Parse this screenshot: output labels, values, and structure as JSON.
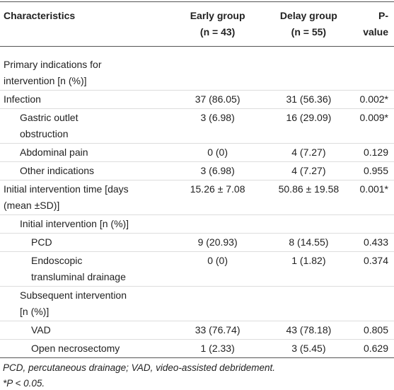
{
  "table": {
    "header": [
      "Characteristics",
      [
        "Early group",
        "(n = 43)"
      ],
      [
        "Delay group",
        "(n = 55)"
      ],
      "P-value"
    ],
    "rows": [
      {
        "label": [
          "Primary indications for",
          "intervention [n (%)]"
        ]
      },
      {
        "label": [
          "Infection"
        ],
        "early": "37 (86.05)",
        "delay": "31 (56.36)",
        "p": "0.002*"
      },
      {
        "label": [
          "Gastric outlet",
          "obstruction"
        ],
        "early": "3 (6.98)",
        "delay": "16 (29.09)",
        "p": "0.009*"
      },
      {
        "label": [
          "Abdominal pain"
        ],
        "early": "0 (0)",
        "delay": "4 (7.27)",
        "p": "0.129"
      },
      {
        "label": [
          "Other indications"
        ],
        "early": "3 (6.98)",
        "delay": "4 (7.27)",
        "p": "0.955"
      },
      {
        "label": [
          "Initial intervention time [days",
          "(mean ±SD)]"
        ],
        "early": "15.26 ± 7.08",
        "delay": "50.86 ± 19.58",
        "p": "0.001*"
      },
      {
        "label": [
          "Initial intervention [n (%)]"
        ]
      },
      {
        "label": [
          "PCD"
        ],
        "early": "9 (20.93)",
        "delay": "8 (14.55)",
        "p": "0.433"
      },
      {
        "label": [
          "Endoscopic",
          "transluminal drainage"
        ],
        "early": "0 (0)",
        "delay": "1 (1.82)",
        "p": "0.374"
      },
      {
        "label": [
          "Subsequent intervention",
          "[n (%)]"
        ]
      },
      {
        "label": [
          "VAD"
        ],
        "early": "33 (76.74)",
        "delay": "43 (78.18)",
        "p": "0.805"
      },
      {
        "label": [
          "Open necrosectomy"
        ],
        "early": "1 (2.33)",
        "delay": "3 (5.45)",
        "p": "0.629"
      }
    ]
  },
  "footnotes": [
    "PCD, percutaneous drainage; VAD, video-assisted debridement.",
    "*P < 0.05."
  ]
}
